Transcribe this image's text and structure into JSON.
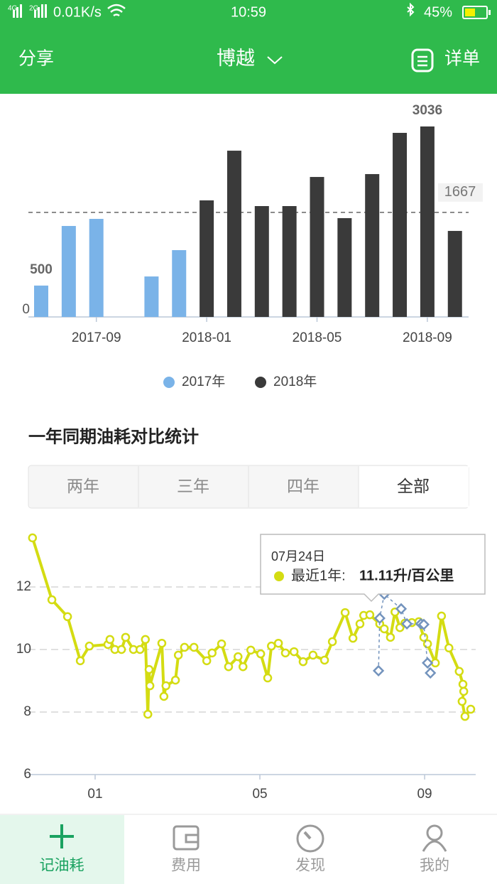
{
  "status_bar": {
    "network1": "4G",
    "network2": "2G",
    "speed": "0.01K/s",
    "time": "10:59",
    "battery": "45%"
  },
  "header": {
    "left": "分享",
    "title": "博越",
    "right": "详单"
  },
  "chart_data": [
    {
      "type": "bar",
      "categories": [
        null,
        null,
        "2017-09",
        null,
        null,
        null,
        "2018-01",
        null,
        null,
        null,
        "2018-05",
        null,
        null,
        null,
        "2018-09",
        null
      ],
      "series": [
        {
          "name": "2017年",
          "color": "#7ab3e8",
          "values": [
            500,
            1450,
            1563,
            null,
            645,
            1065,
            null,
            null,
            null,
            null,
            null,
            null,
            null,
            null,
            null,
            null
          ]
        },
        {
          "name": "2018年",
          "color": "#3a3a3a",
          "values": [
            null,
            null,
            null,
            null,
            null,
            null,
            1858,
            2650,
            1767,
            1767,
            2231,
            1575,
            2277,
            2934,
            3036,
            1371
          ]
        }
      ],
      "ylim": [
        0,
        3500
      ],
      "yticks": [
        0
      ],
      "average": 1667,
      "label_extremes": true
    },
    {
      "type": "line",
      "xlim": [
        -0.62,
        10.24
      ],
      "xticks": [
        {
          "value": 1,
          "label": "01"
        },
        {
          "value": 5,
          "label": "05"
        },
        {
          "value": 9,
          "label": "09"
        }
      ],
      "ylim": [
        6,
        14
      ],
      "yticks": [
        6,
        8,
        10,
        12
      ],
      "grid": true,
      "series": [
        {
          "color": "#d4dc12",
          "marker": "circle",
          "style": "solid",
          "x": [
            -0.52,
            -0.05,
            0.33,
            0.64,
            0.86,
            1.31,
            1.36,
            1.48,
            1.64,
            1.74,
            1.93,
            2.09,
            2.22,
            2.28,
            2.31,
            2.33,
            2.62,
            2.67,
            2.72,
            2.95,
            3.02,
            3.17,
            3.4,
            3.71,
            3.84,
            4.07,
            4.24,
            4.47,
            4.59,
            4.78,
            5.02,
            5.19,
            5.28,
            5.45,
            5.62,
            5.83,
            6.05,
            6.29,
            6.57,
            6.76,
            7.07,
            7.26,
            7.43,
            7.52,
            7.67,
            7.91,
            8.02,
            8.17,
            8.28,
            8.4,
            8.52,
            8.69,
            8.86,
            8.98,
            9.07,
            9.26,
            9.41,
            9.59,
            9.84,
            9.93,
            9.95,
            9.91,
            9.98,
            10.12
          ],
          "values": [
            13.57,
            11.59,
            11.05,
            9.64,
            10.11,
            10.16,
            10.32,
            10.0,
            10.0,
            10.39,
            10.0,
            10.0,
            10.32,
            7.93,
            9.36,
            8.84,
            10.2,
            8.5,
            8.84,
            9.02,
            9.82,
            10.07,
            10.07,
            9.64,
            9.89,
            10.18,
            9.45,
            9.77,
            9.45,
            9.98,
            9.86,
            9.09,
            10.11,
            10.2,
            9.89,
            9.93,
            9.61,
            9.82,
            9.66,
            10.25,
            11.18,
            10.36,
            10.82,
            11.09,
            11.11,
            10.82,
            10.66,
            10.39,
            11.2,
            10.7,
            10.84,
            10.86,
            10.89,
            10.39,
            10.18,
            9.57,
            11.07,
            10.05,
            9.3,
            8.89,
            8.66,
            8.34,
            7.86,
            8.09
          ]
        },
        {
          "color": "#7393bd",
          "marker": "diamond",
          "style": "dashed",
          "x": [
            7.88,
            7.91,
            8.02,
            8.43,
            8.57,
            8.91,
            8.98,
            9.07,
            9.14
          ],
          "values": [
            9.32,
            11.0,
            11.77,
            11.3,
            10.82,
            10.82,
            10.8,
            9.57,
            9.25
          ]
        }
      ],
      "tooltip": {
        "date": "07月24日",
        "label": "最近1年:",
        "value": "11.11升/百公里"
      }
    }
  ],
  "section_title": "一年同期油耗对比统计",
  "tabs": [
    "两年",
    "三年",
    "四年",
    "全部"
  ],
  "selected_tab": 3,
  "bottom_nav": {
    "items": [
      "记油耗",
      "费用",
      "发现",
      "我的"
    ],
    "active": 0
  }
}
